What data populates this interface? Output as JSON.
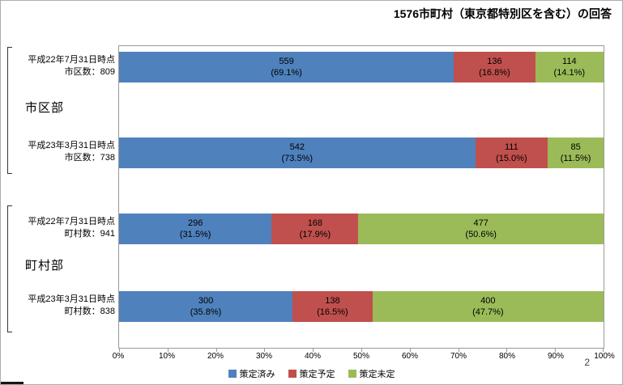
{
  "page": {
    "title": "1576市町村（東京都特別区を含む）の回答",
    "number": "2"
  },
  "chart_data": {
    "type": "bar",
    "orientation": "horizontal",
    "stacked": true,
    "unit": "percent",
    "xlim": [
      0,
      100
    ],
    "x_ticks": [
      "0%",
      "10%",
      "20%",
      "30%",
      "40%",
      "50%",
      "60%",
      "70%",
      "80%",
      "90%",
      "100%"
    ],
    "legend_position": "bottom",
    "grid": false,
    "series": [
      {
        "name": "策定済み",
        "color": "#4F81BD"
      },
      {
        "name": "策定予定",
        "color": "#C0504D"
      },
      {
        "name": "策定未定",
        "color": "#9BBB59"
      }
    ],
    "groups": [
      {
        "group_label": "市区部",
        "rows": [
          {
            "time_label": "平成22年7月31日時点",
            "count_label": "市区数：809",
            "segments": [
              {
                "value": "559",
                "pct": 69.1,
                "pct_label": "(69.1%)"
              },
              {
                "value": "136",
                "pct": 16.8,
                "pct_label": "(16.8%)"
              },
              {
                "value": "114",
                "pct": 14.1,
                "pct_label": "(14.1%)"
              }
            ]
          },
          {
            "time_label": "平成23年3月31日時点",
            "count_label": "市区数：738",
            "segments": [
              {
                "value": "542",
                "pct": 73.5,
                "pct_label": "(73.5%)"
              },
              {
                "value": "111",
                "pct": 15.0,
                "pct_label": "(15.0%)"
              },
              {
                "value": "85",
                "pct": 11.5,
                "pct_label": "(11.5%)"
              }
            ]
          }
        ]
      },
      {
        "group_label": "町村部",
        "rows": [
          {
            "time_label": "平成22年7月31日時点",
            "count_label": "町村数：941",
            "segments": [
              {
                "value": "296",
                "pct": 31.5,
                "pct_label": "(31.5%)"
              },
              {
                "value": "168",
                "pct": 17.9,
                "pct_label": "(17.9%)"
              },
              {
                "value": "477",
                "pct": 50.6,
                "pct_label": "(50.6%)"
              }
            ]
          },
          {
            "time_label": "平成23年3月31日時点",
            "count_label": "町村数：838",
            "segments": [
              {
                "value": "300",
                "pct": 35.8,
                "pct_label": "(35.8%)"
              },
              {
                "value": "138",
                "pct": 16.5,
                "pct_label": "(16.5%)"
              },
              {
                "value": "400",
                "pct": 47.7,
                "pct_label": "(47.7%)"
              }
            ]
          }
        ]
      }
    ]
  }
}
